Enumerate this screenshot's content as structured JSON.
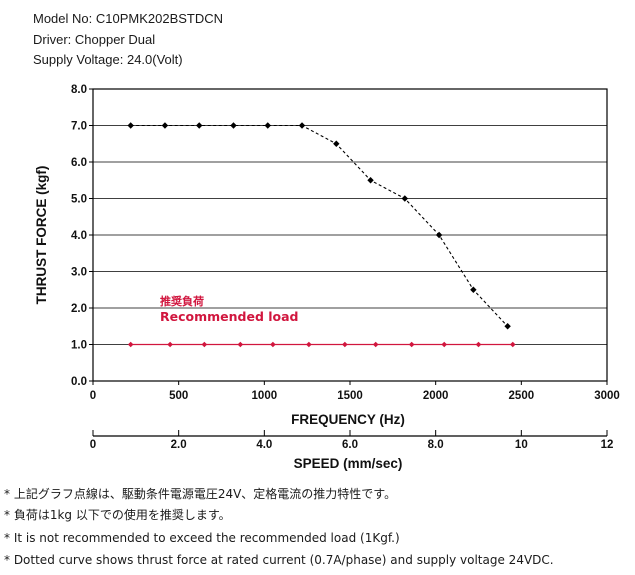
{
  "header": {
    "model": "Model No: C10PMK202BSTDCN",
    "driver": "Driver: Chopper Dual",
    "voltage": "Supply Voltage: 24.0(Volt)"
  },
  "chart_data": {
    "type": "line",
    "xlabel": "FREQUENCY (Hz)",
    "ylabel": "THRUST FORCE (kgf)",
    "x2label": "SPEED (mm/sec)",
    "xlim": [
      0,
      3000
    ],
    "ylim": [
      0,
      8
    ],
    "x2lim": [
      0,
      12
    ],
    "x_ticks": [
      "0",
      "500",
      "1000",
      "1500",
      "2000",
      "2500",
      "3000"
    ],
    "y_ticks": [
      "0.0",
      "1.0",
      "2.0",
      "3.0",
      "4.0",
      "5.0",
      "6.0",
      "7.0",
      "8.0"
    ],
    "x2_ticks": [
      "0",
      "2.0",
      "4.0",
      "6.0",
      "8.0",
      "10",
      "12"
    ],
    "grid": "horizontal",
    "series": [
      {
        "style": "dotted",
        "color": "#000000",
        "x": [
          220,
          420,
          620,
          820,
          1020,
          1220,
          1420,
          1620,
          1820,
          2020,
          2220,
          2420
        ],
        "y": [
          7.0,
          7.0,
          7.0,
          7.0,
          7.0,
          7.0,
          6.5,
          5.5,
          5.0,
          4.0,
          2.5,
          1.5
        ]
      },
      {
        "style": "solid",
        "color": "#d1163e",
        "x": [
          220,
          450,
          650,
          860,
          1050,
          1260,
          1470,
          1650,
          1860,
          2050,
          2250,
          2450
        ],
        "y": [
          1.0,
          1.0,
          1.0,
          1.0,
          1.0,
          1.0,
          1.0,
          1.0,
          1.0,
          1.0,
          1.0,
          1.0
        ]
      }
    ],
    "annotation": {
      "jp": "推奨負荷",
      "en": "Recommended load",
      "color": "#d1163e"
    }
  },
  "notes": [
    "* 上記グラフ点線は、駆動条件電源電圧24V、定格電流の推力特性です。",
    "* 負荷は1kg 以下での使用を推奨します。",
    "* It is not recommended to exceed the recommended load (1Kgf.)",
    "* Dotted curve shows thrust force at rated current (0.7A/phase) and supply voltage 24VDC."
  ]
}
